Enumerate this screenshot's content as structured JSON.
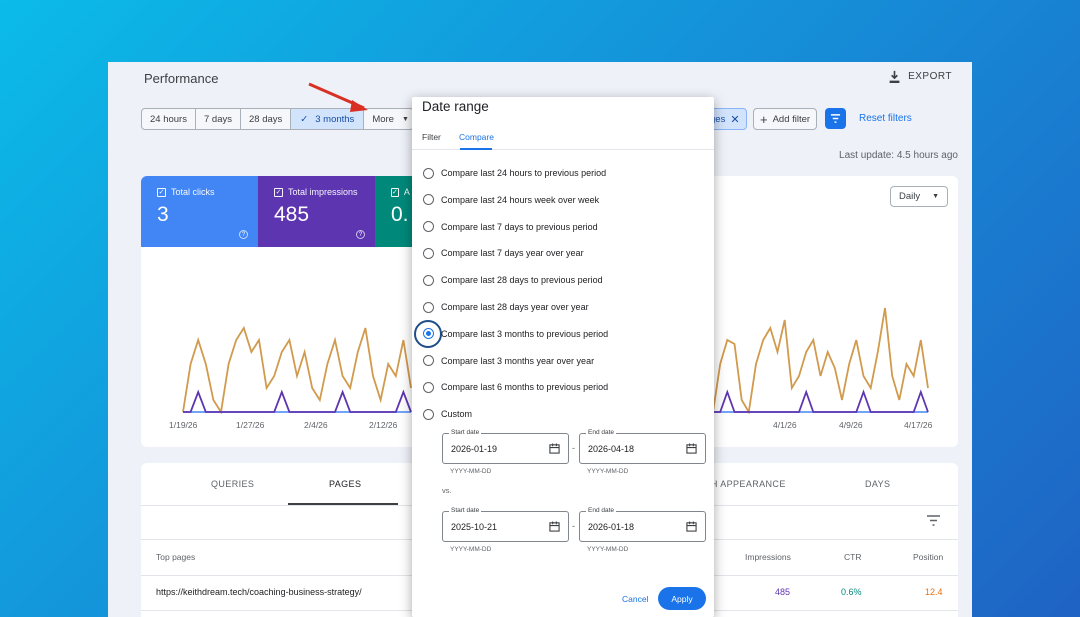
{
  "header": {
    "title": "Performance",
    "export_label": "EXPORT"
  },
  "range_buttons": [
    "24 hours",
    "7 days",
    "28 days",
    "3 months",
    "More"
  ],
  "filters": {
    "pages_chip": "ges",
    "add_filter": "Add filter",
    "reset": "Reset filters"
  },
  "last_update": "Last update: 4.5 hours ago",
  "metrics": [
    {
      "label": "Total clicks",
      "value": "3",
      "color": "#4285f4"
    },
    {
      "label": "Total impressions",
      "value": "485",
      "color": "#5e35b1"
    },
    {
      "label": "A",
      "value": "0.",
      "color": "#00897b"
    }
  ],
  "granularity": "Daily",
  "chart_data": {
    "type": "line",
    "x_ticks_left": [
      "1/19/26",
      "1/27/26",
      "2/4/26",
      "2/12/26"
    ],
    "x_ticks_right": [
      "4/1/26",
      "4/9/26",
      "4/17/26"
    ],
    "series": [
      {
        "name": "Total impressions",
        "color": "#d19a4c",
        "values": [
          0,
          4,
          6,
          4,
          1,
          0,
          4,
          6,
          7,
          5,
          6,
          2,
          3,
          5,
          6,
          3,
          5,
          2,
          1,
          4,
          6,
          3,
          2,
          5,
          7,
          3,
          1,
          4,
          3,
          6,
          2
        ]
      },
      {
        "name": "Total clicks",
        "color": "#5e35b1",
        "values": [
          0,
          0,
          1,
          0,
          0,
          0,
          0,
          0,
          0,
          0,
          0,
          0,
          0,
          1,
          0,
          0,
          0,
          0,
          0,
          0,
          0,
          1,
          0,
          0,
          0,
          0,
          0,
          0,
          0,
          1,
          0
        ]
      }
    ]
  },
  "table": {
    "tabs": [
      "QUERIES",
      "PAGES",
      "CH APPEARANCE",
      "DAYS"
    ],
    "columns": [
      "Top pages",
      "Impressions",
      "CTR",
      "Position"
    ],
    "row": {
      "page": "https://keithdream.tech/coaching-business-strategy/",
      "impressions": "485",
      "ctr": "0.6%",
      "position": "12.4"
    }
  },
  "dialog": {
    "title": "Date range",
    "tabs": [
      "Filter",
      "Compare"
    ],
    "options": [
      "Compare last 24 hours to previous period",
      "Compare last 24 hours week over week",
      "Compare last 7 days to previous period",
      "Compare last 7 days year over year",
      "Compare last 28 days to previous period",
      "Compare last 28 days year over year",
      "Compare last 3 months to previous period",
      "Compare last 3 months year over year",
      "Compare last 6 months to previous period",
      "Custom"
    ],
    "selected_index": 6,
    "start_label": "Start date",
    "end_label": "End date",
    "range1_start": "2026-01-19",
    "range1_end": "2026-04-18",
    "range2_start": "2025-10-21",
    "range2_end": "2026-01-18",
    "format_hint": "YYYY-MM-DD",
    "vs_label": "vs.",
    "cancel": "Cancel",
    "apply": "Apply"
  }
}
